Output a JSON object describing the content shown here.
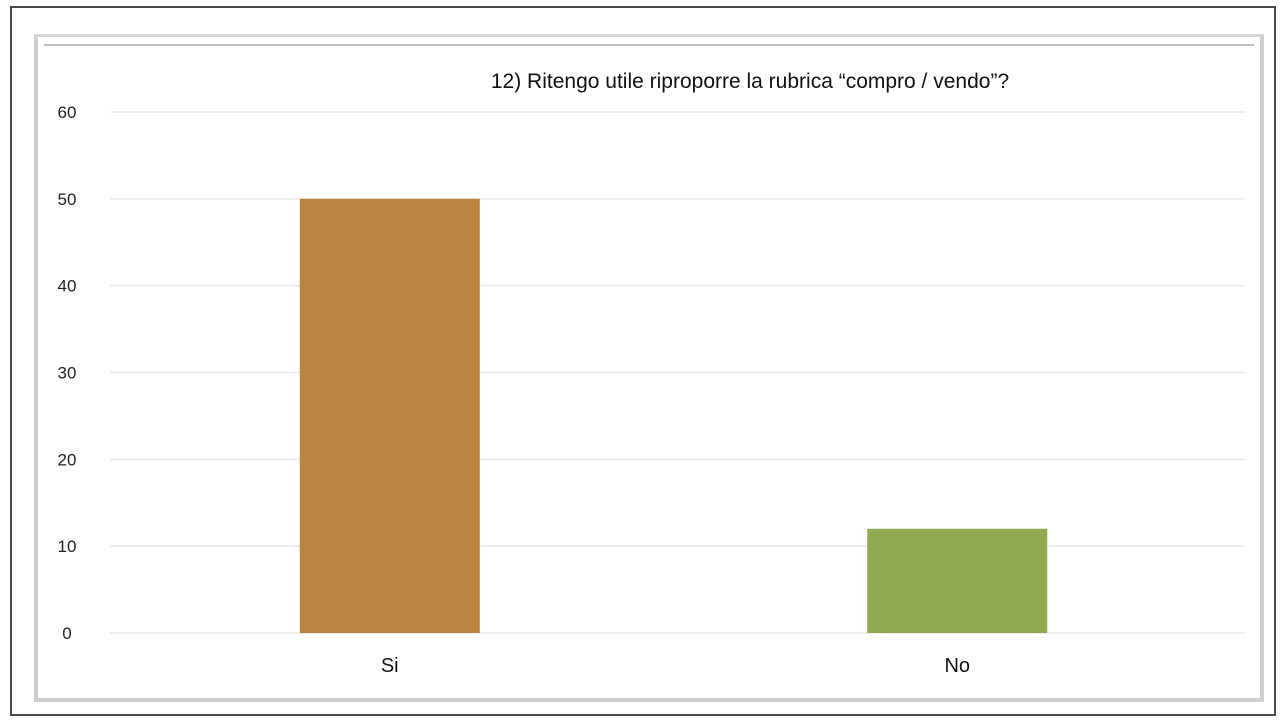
{
  "chart_data": {
    "type": "bar",
    "title": "12) Ritengo utile riproporre la rubrica “compro / vendo”?",
    "xlabel": "",
    "ylabel": "",
    "categories": [
      "Si",
      "No"
    ],
    "values": [
      50,
      12
    ],
    "ylim": [
      0,
      60
    ],
    "yticks": [
      "0",
      "10",
      "20",
      "30",
      "40",
      "50",
      "60"
    ],
    "grid": true,
    "legend": "none",
    "colors": [
      "#B8843F",
      "#8FAA50"
    ],
    "gridline_color": "#e9e9e9"
  }
}
